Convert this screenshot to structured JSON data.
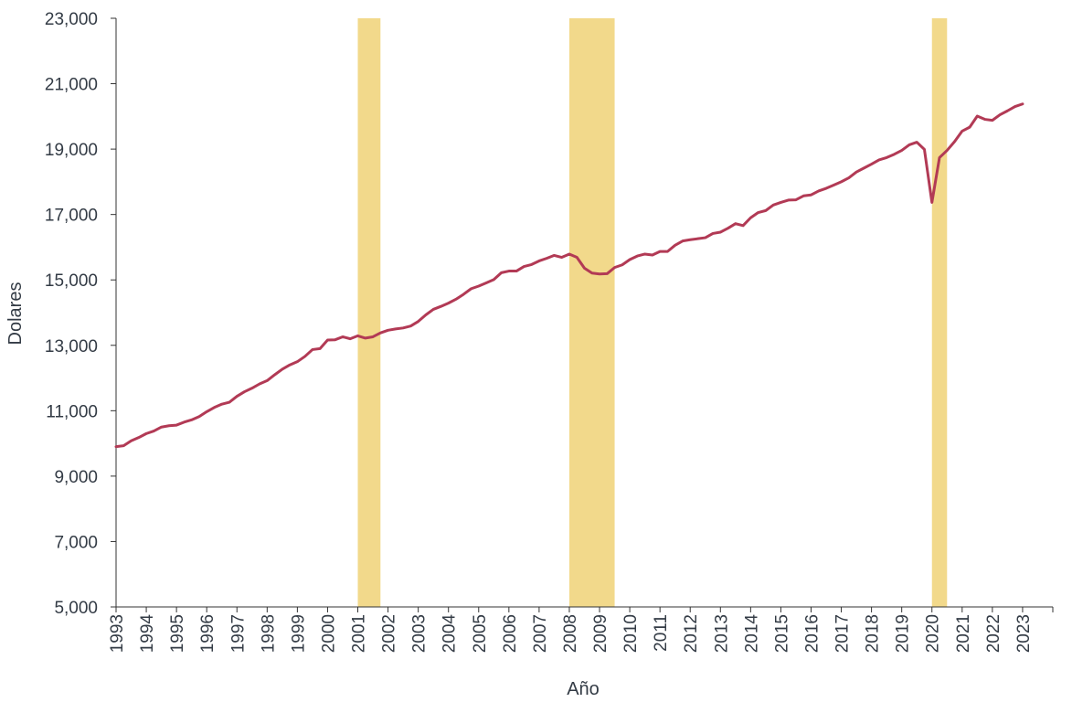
{
  "chart_data": {
    "type": "line",
    "title": "",
    "xlabel": "Año",
    "ylabel": "Dolares",
    "ylim": [
      5000,
      23000
    ],
    "y_ticks": [
      5000,
      7000,
      9000,
      11000,
      13000,
      15000,
      17000,
      19000,
      21000,
      23000
    ],
    "y_tick_labels": [
      "5,000",
      "7,000",
      "9,000",
      "11,000",
      "13,000",
      "15,000",
      "17,000",
      "19,000",
      "21,000",
      "23,000"
    ],
    "x_range": [
      1993.0,
      2024.0
    ],
    "x_tick_labels": [
      "1993",
      "1994",
      "1995",
      "1996",
      "1997",
      "1998",
      "1999",
      "2000",
      "2001",
      "2002",
      "2003",
      "2004",
      "2005",
      "2006",
      "2007",
      "2008",
      "2009",
      "2010",
      "2011",
      "2012",
      "2013",
      "2014",
      "2015",
      "2016",
      "2017",
      "2018",
      "2019",
      "2020",
      "2021",
      "2022",
      "2023"
    ],
    "grid": false,
    "colors": {
      "line": "#b23a55",
      "recession": "#f2d98b",
      "axis": "#333333",
      "text": "#333b45"
    },
    "recessions": [
      {
        "start": 2001.0,
        "end": 2001.75
      },
      {
        "start": 2008.0,
        "end": 2009.5
      },
      {
        "start": 2020.0,
        "end": 2020.5
      }
    ],
    "series": [
      {
        "points": [
          [
            1993.0,
            9900
          ],
          [
            1993.25,
            9930
          ],
          [
            1993.5,
            10080
          ],
          [
            1993.75,
            10180
          ],
          [
            1994.0,
            10300
          ],
          [
            1994.25,
            10380
          ],
          [
            1994.5,
            10500
          ],
          [
            1994.75,
            10540
          ],
          [
            1995.0,
            10560
          ],
          [
            1995.25,
            10650
          ],
          [
            1995.5,
            10720
          ],
          [
            1995.75,
            10820
          ],
          [
            1996.0,
            10970
          ],
          [
            1996.25,
            11100
          ],
          [
            1996.5,
            11200
          ],
          [
            1996.75,
            11260
          ],
          [
            1997.0,
            11440
          ],
          [
            1997.25,
            11580
          ],
          [
            1997.5,
            11690
          ],
          [
            1997.75,
            11820
          ],
          [
            1998.0,
            11920
          ],
          [
            1998.25,
            12100
          ],
          [
            1998.5,
            12270
          ],
          [
            1998.75,
            12400
          ],
          [
            1999.0,
            12500
          ],
          [
            1999.25,
            12660
          ],
          [
            1999.5,
            12870
          ],
          [
            1999.75,
            12900
          ],
          [
            2000.0,
            13160
          ],
          [
            2000.25,
            13170
          ],
          [
            2000.5,
            13260
          ],
          [
            2000.75,
            13200
          ],
          [
            2001.0,
            13290
          ],
          [
            2001.25,
            13220
          ],
          [
            2001.5,
            13260
          ],
          [
            2001.75,
            13380
          ],
          [
            2002.0,
            13460
          ],
          [
            2002.25,
            13500
          ],
          [
            2002.5,
            13530
          ],
          [
            2002.75,
            13590
          ],
          [
            2003.0,
            13730
          ],
          [
            2003.25,
            13930
          ],
          [
            2003.5,
            14100
          ],
          [
            2003.75,
            14190
          ],
          [
            2004.0,
            14290
          ],
          [
            2004.25,
            14410
          ],
          [
            2004.5,
            14560
          ],
          [
            2004.75,
            14730
          ],
          [
            2005.0,
            14810
          ],
          [
            2005.25,
            14910
          ],
          [
            2005.5,
            15010
          ],
          [
            2005.75,
            15220
          ],
          [
            2006.0,
            15270
          ],
          [
            2006.25,
            15270
          ],
          [
            2006.5,
            15410
          ],
          [
            2006.75,
            15470
          ],
          [
            2007.0,
            15580
          ],
          [
            2007.25,
            15660
          ],
          [
            2007.5,
            15750
          ],
          [
            2007.75,
            15690
          ],
          [
            2008.0,
            15790
          ],
          [
            2008.25,
            15690
          ],
          [
            2008.5,
            15360
          ],
          [
            2008.75,
            15210
          ],
          [
            2009.0,
            15180
          ],
          [
            2009.25,
            15190
          ],
          [
            2009.5,
            15380
          ],
          [
            2009.75,
            15460
          ],
          [
            2010.0,
            15620
          ],
          [
            2010.25,
            15730
          ],
          [
            2010.5,
            15790
          ],
          [
            2010.75,
            15760
          ],
          [
            2011.0,
            15870
          ],
          [
            2011.25,
            15870
          ],
          [
            2011.5,
            16060
          ],
          [
            2011.75,
            16190
          ],
          [
            2012.0,
            16230
          ],
          [
            2012.25,
            16260
          ],
          [
            2012.5,
            16290
          ],
          [
            2012.75,
            16420
          ],
          [
            2013.0,
            16460
          ],
          [
            2013.25,
            16580
          ],
          [
            2013.5,
            16720
          ],
          [
            2013.75,
            16660
          ],
          [
            2014.0,
            16900
          ],
          [
            2014.25,
            17060
          ],
          [
            2014.5,
            17120
          ],
          [
            2014.75,
            17290
          ],
          [
            2015.0,
            17370
          ],
          [
            2015.25,
            17440
          ],
          [
            2015.5,
            17450
          ],
          [
            2015.75,
            17570
          ],
          [
            2016.0,
            17600
          ],
          [
            2016.25,
            17720
          ],
          [
            2016.5,
            17800
          ],
          [
            2016.75,
            17900
          ],
          [
            2017.0,
            18000
          ],
          [
            2017.25,
            18120
          ],
          [
            2017.5,
            18300
          ],
          [
            2017.75,
            18420
          ],
          [
            2018.0,
            18540
          ],
          [
            2018.25,
            18670
          ],
          [
            2018.5,
            18740
          ],
          [
            2018.75,
            18840
          ],
          [
            2019.0,
            18960
          ],
          [
            2019.25,
            19130
          ],
          [
            2019.5,
            19210
          ],
          [
            2019.75,
            18990
          ],
          [
            2020.0,
            17370
          ],
          [
            2020.25,
            18740
          ],
          [
            2020.5,
            18960
          ],
          [
            2020.75,
            19230
          ],
          [
            2021.0,
            19550
          ],
          [
            2021.25,
            19670
          ],
          [
            2021.5,
            20010
          ],
          [
            2021.75,
            19910
          ],
          [
            2022.0,
            19880
          ],
          [
            2022.25,
            20050
          ],
          [
            2022.5,
            20170
          ],
          [
            2022.75,
            20300
          ],
          [
            2023.0,
            20380
          ]
        ]
      }
    ]
  }
}
